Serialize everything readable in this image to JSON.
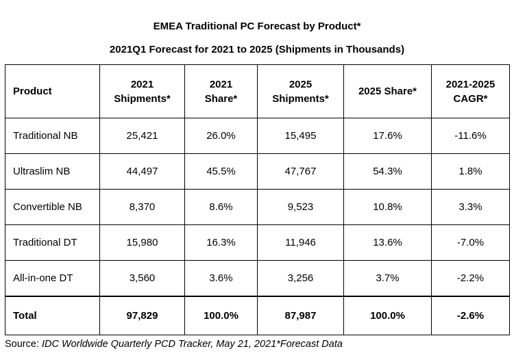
{
  "title": "EMEA Traditional PC Forecast by Product*",
  "subtitle": "2021Q1 Forecast for 2021 to 2025 (Shipments in Thousands)",
  "headers": [
    [
      "Product"
    ],
    [
      "2021",
      "Shipments*"
    ],
    [
      "2021",
      "Share*"
    ],
    [
      "2025",
      "Shipments*"
    ],
    [
      "2025 Share*"
    ],
    [
      "2021-2025",
      "CAGR*"
    ]
  ],
  "rows": [
    [
      "Traditional NB",
      "25,421",
      "26.0%",
      "15,495",
      "17.6%",
      "-11.6%"
    ],
    [
      "Ultraslim NB",
      "44,497",
      "45.5%",
      "47,767",
      "54.3%",
      "1.8%"
    ],
    [
      "Convertible NB",
      "8,370",
      "8.6%",
      "9,523",
      "10.8%",
      "3.3%"
    ],
    [
      "Traditional DT",
      "15,980",
      "16.3%",
      "11,946",
      "13.6%",
      "-7.0%"
    ],
    [
      "All-in-one DT",
      "3,560",
      "3.6%",
      "3,256",
      "3.7%",
      "-2.2%"
    ]
  ],
  "total": [
    "Total",
    "97,829",
    "100.0%",
    "87,987",
    "100.0%",
    "-2.6%"
  ],
  "source": {
    "prefix": "Source: ",
    "text": "IDC Worldwide Quarterly PCD Tracker, May 21, 2021*Forecast Data"
  }
}
